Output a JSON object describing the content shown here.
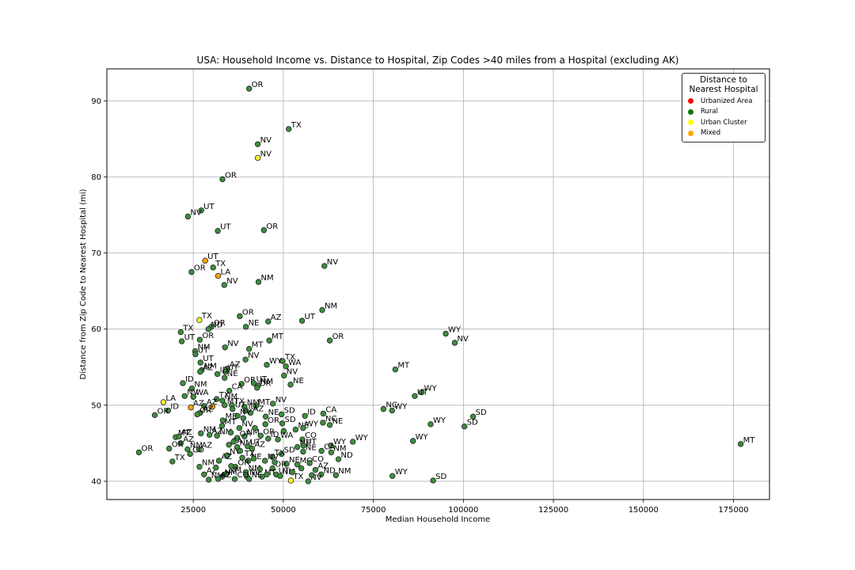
{
  "chart_data": {
    "type": "scatter",
    "title": "USA: Household Income vs. Distance to Hospital, Zip Codes >40 miles from a Hospital (excluding AK)",
    "xlabel": "Median Household Income",
    "ylabel": "Distance from Zip Code to Nearest Hospital (mi)",
    "xlim": [
      1000,
      185000
    ],
    "ylim": [
      37.6,
      94.2
    ],
    "xticks": [
      25000,
      50000,
      75000,
      100000,
      125000,
      150000,
      175000
    ],
    "yticks": [
      40,
      50,
      60,
      70,
      80,
      90
    ],
    "grid": true,
    "legend": {
      "title": "Distance to Nearest Hospital",
      "placement": "upper right",
      "entries": [
        {
          "label": "Urbanized Area",
          "color": "#ff0000"
        },
        {
          "label": "Rural",
          "color": "#0a7a0a"
        },
        {
          "label": "Urban Cluster",
          "color": "#ffff00"
        },
        {
          "label": "Mixed",
          "color": "#ffa500"
        }
      ]
    },
    "category_colors": {
      "Rural": "#3d8f3d",
      "Urban Cluster": "#ffff33",
      "Mixed": "#ffa500",
      "Urbanized Area": "#ff0000"
    },
    "points": [
      {
        "x": 40500,
        "y": 91.6,
        "label": "OR",
        "cat": "Rural"
      },
      {
        "x": 51500,
        "y": 86.3,
        "label": "TX",
        "cat": "Rural"
      },
      {
        "x": 42900,
        "y": 84.3,
        "label": "NV",
        "cat": "Rural"
      },
      {
        "x": 42900,
        "y": 82.5,
        "label": "NV",
        "cat": "Urban Cluster"
      },
      {
        "x": 33100,
        "y": 79.7,
        "label": "OR",
        "cat": "Rural"
      },
      {
        "x": 27200,
        "y": 75.6,
        "label": "UT",
        "cat": "Rural"
      },
      {
        "x": 23500,
        "y": 74.8,
        "label": "NV",
        "cat": "Rural"
      },
      {
        "x": 31800,
        "y": 72.9,
        "label": "UT",
        "cat": "Rural"
      },
      {
        "x": 44600,
        "y": 73.0,
        "label": "OR",
        "cat": "Rural"
      },
      {
        "x": 61400,
        "y": 68.3,
        "label": "NV",
        "cat": "Rural"
      },
      {
        "x": 28300,
        "y": 69.0,
        "label": "UT",
        "cat": "Mixed"
      },
      {
        "x": 30500,
        "y": 68.1,
        "label": "TX",
        "cat": "Rural"
      },
      {
        "x": 24500,
        "y": 67.5,
        "label": "OR",
        "cat": "Rural"
      },
      {
        "x": 31900,
        "y": 67.0,
        "label": "LA",
        "cat": "Mixed"
      },
      {
        "x": 33600,
        "y": 65.8,
        "label": "NV",
        "cat": "Rural"
      },
      {
        "x": 43100,
        "y": 66.2,
        "label": "NM",
        "cat": "Rural"
      },
      {
        "x": 60800,
        "y": 62.5,
        "label": "NM",
        "cat": "Rural"
      },
      {
        "x": 37900,
        "y": 61.7,
        "label": "OR",
        "cat": "Rural"
      },
      {
        "x": 26700,
        "y": 61.2,
        "label": "TX",
        "cat": "Urban Cluster"
      },
      {
        "x": 45800,
        "y": 61.0,
        "label": "AZ",
        "cat": "Rural"
      },
      {
        "x": 55200,
        "y": 61.1,
        "label": "UT",
        "cat": "Rural"
      },
      {
        "x": 39600,
        "y": 60.3,
        "label": "NE",
        "cat": "Rural"
      },
      {
        "x": 30000,
        "y": 60.3,
        "label": "OR",
        "cat": "Rural"
      },
      {
        "x": 29200,
        "y": 60.0,
        "label": "ND",
        "cat": "Rural"
      },
      {
        "x": 21500,
        "y": 59.6,
        "label": "TX",
        "cat": "Rural"
      },
      {
        "x": 95100,
        "y": 59.4,
        "label": "WY",
        "cat": "Rural"
      },
      {
        "x": 97600,
        "y": 58.2,
        "label": "NV",
        "cat": "Rural"
      },
      {
        "x": 62900,
        "y": 58.5,
        "label": "OR",
        "cat": "Rural"
      },
      {
        "x": 46100,
        "y": 58.5,
        "label": "MT",
        "cat": "Rural"
      },
      {
        "x": 26800,
        "y": 58.6,
        "label": "OR",
        "cat": "Rural"
      },
      {
        "x": 21800,
        "y": 58.4,
        "label": "UT",
        "cat": "Rural"
      },
      {
        "x": 33800,
        "y": 57.6,
        "label": "NV",
        "cat": "Rural"
      },
      {
        "x": 40500,
        "y": 57.4,
        "label": "MT",
        "cat": "Rural"
      },
      {
        "x": 25500,
        "y": 57.1,
        "label": "NM",
        "cat": "Rural"
      },
      {
        "x": 25600,
        "y": 56.7,
        "label": "UT",
        "cat": "Rural"
      },
      {
        "x": 39500,
        "y": 56.0,
        "label": "NV",
        "cat": "Rural"
      },
      {
        "x": 27000,
        "y": 55.6,
        "label": "UT",
        "cat": "Rural"
      },
      {
        "x": 49800,
        "y": 55.8,
        "label": "TX",
        "cat": "Rural"
      },
      {
        "x": 45400,
        "y": 55.3,
        "label": "WY",
        "cat": "Rural"
      },
      {
        "x": 50700,
        "y": 55.1,
        "label": "WA",
        "cat": "Rural"
      },
      {
        "x": 81100,
        "y": 54.7,
        "label": "MT",
        "cat": "Rural"
      },
      {
        "x": 27300,
        "y": 54.6,
        "label": "NM",
        "cat": "Rural"
      },
      {
        "x": 26900,
        "y": 54.4,
        "label": "AZ",
        "cat": "Rural"
      },
      {
        "x": 34400,
        "y": 54.8,
        "label": "AZ",
        "cat": "Rural"
      },
      {
        "x": 33900,
        "y": 54.4,
        "label": "UT",
        "cat": "Rural"
      },
      {
        "x": 31700,
        "y": 54.1,
        "label": "ID",
        "cat": "Rural"
      },
      {
        "x": 50200,
        "y": 53.9,
        "label": "NV",
        "cat": "Rural"
      },
      {
        "x": 33700,
        "y": 53.6,
        "label": "NE",
        "cat": "Rural"
      },
      {
        "x": 22100,
        "y": 52.9,
        "label": "ID",
        "cat": "Rural"
      },
      {
        "x": 38400,
        "y": 52.8,
        "label": "OR",
        "cat": "Rural"
      },
      {
        "x": 41800,
        "y": 52.9,
        "label": "UT",
        "cat": "Rural"
      },
      {
        "x": 43000,
        "y": 52.6,
        "label": "NM",
        "cat": "Rural"
      },
      {
        "x": 42700,
        "y": 52.3,
        "label": "OR",
        "cat": "Rural"
      },
      {
        "x": 52000,
        "y": 52.7,
        "label": "NE",
        "cat": "Rural"
      },
      {
        "x": 24600,
        "y": 52.2,
        "label": "NM",
        "cat": "Rural"
      },
      {
        "x": 35000,
        "y": 51.9,
        "label": "CA",
        "cat": "Rural"
      },
      {
        "x": 88400,
        "y": 51.7,
        "label": "WY",
        "cat": "Rural"
      },
      {
        "x": 86500,
        "y": 51.2,
        "label": "UT",
        "cat": "Rural"
      },
      {
        "x": 22600,
        "y": 51.2,
        "label": "NV",
        "cat": "Rural"
      },
      {
        "x": 25000,
        "y": 51.1,
        "label": "WA",
        "cat": "Rural"
      },
      {
        "x": 31500,
        "y": 50.8,
        "label": "TX",
        "cat": "Rural"
      },
      {
        "x": 33100,
        "y": 50.6,
        "label": "NM",
        "cat": "Rural"
      },
      {
        "x": 16700,
        "y": 50.4,
        "label": "LA",
        "cat": "Urban Cluster"
      },
      {
        "x": 28000,
        "y": 49.9,
        "label": "AZ",
        "cat": "Rural"
      },
      {
        "x": 33700,
        "y": 50.0,
        "label": "MT",
        "cat": "Rural"
      },
      {
        "x": 35700,
        "y": 50.0,
        "label": "TX",
        "cat": "Rural"
      },
      {
        "x": 30300,
        "y": 49.8,
        "label": "",
        "cat": "Mixed"
      },
      {
        "x": 47100,
        "y": 50.2,
        "label": "NV",
        "cat": "Rural"
      },
      {
        "x": 39200,
        "y": 49.8,
        "label": "NM",
        "cat": "Rural"
      },
      {
        "x": 42400,
        "y": 49.9,
        "label": "MT",
        "cat": "Rural"
      },
      {
        "x": 24300,
        "y": 49.7,
        "label": "AZ",
        "cat": "Mixed"
      },
      {
        "x": 18000,
        "y": 49.3,
        "label": "ID",
        "cat": "Rural"
      },
      {
        "x": 35900,
        "y": 49.5,
        "label": "UT",
        "cat": "Rural"
      },
      {
        "x": 39600,
        "y": 49.3,
        "label": "ID",
        "cat": "Rural"
      },
      {
        "x": 40900,
        "y": 49.0,
        "label": "AZ",
        "cat": "Rural"
      },
      {
        "x": 26900,
        "y": 49.0,
        "label": "AZ",
        "cat": "Rural"
      },
      {
        "x": 26100,
        "y": 48.8,
        "label": "OR",
        "cat": "Rural"
      },
      {
        "x": 14300,
        "y": 48.7,
        "label": "OR",
        "cat": "Rural"
      },
      {
        "x": 77800,
        "y": 49.5,
        "label": "NC",
        "cat": "Rural"
      },
      {
        "x": 80200,
        "y": 49.3,
        "label": "WY",
        "cat": "Rural"
      },
      {
        "x": 102700,
        "y": 48.5,
        "label": "SD",
        "cat": "Rural"
      },
      {
        "x": 49500,
        "y": 48.8,
        "label": "SD",
        "cat": "Rural"
      },
      {
        "x": 45100,
        "y": 48.5,
        "label": "NE",
        "cat": "Rural"
      },
      {
        "x": 37300,
        "y": 48.6,
        "label": "NV",
        "cat": "Rural"
      },
      {
        "x": 56000,
        "y": 48.6,
        "label": "ID",
        "cat": "Rural"
      },
      {
        "x": 61100,
        "y": 48.9,
        "label": "CA",
        "cat": "Rural"
      },
      {
        "x": 33200,
        "y": 48.0,
        "label": "ME",
        "cat": "Rural"
      },
      {
        "x": 90900,
        "y": 47.5,
        "label": "WY",
        "cat": "Rural"
      },
      {
        "x": 100300,
        "y": 47.2,
        "label": "SD",
        "cat": "Rural"
      },
      {
        "x": 61000,
        "y": 47.7,
        "label": "NC",
        "cat": "Rural"
      },
      {
        "x": 62900,
        "y": 47.4,
        "label": "NE",
        "cat": "Rural"
      },
      {
        "x": 49700,
        "y": 47.6,
        "label": "SD",
        "cat": "Rural"
      },
      {
        "x": 45000,
        "y": 47.5,
        "label": "OR",
        "cat": "Rural"
      },
      {
        "x": 33000,
        "y": 47.3,
        "label": "MT",
        "cat": "Rural"
      },
      {
        "x": 37800,
        "y": 47.0,
        "label": "NV",
        "cat": "Rural"
      },
      {
        "x": 53400,
        "y": 46.8,
        "label": "NE",
        "cat": "Rural"
      },
      {
        "x": 55500,
        "y": 47.0,
        "label": "WY",
        "cat": "Rural"
      },
      {
        "x": 50100,
        "y": 46.6,
        "label": "",
        "cat": "Rural"
      },
      {
        "x": 27100,
        "y": 46.3,
        "label": "NM",
        "cat": "Rural"
      },
      {
        "x": 29500,
        "y": 46.1,
        "label": "AZ",
        "cat": "Rural"
      },
      {
        "x": 31600,
        "y": 46.0,
        "label": "NM",
        "cat": "Rural"
      },
      {
        "x": 43700,
        "y": 46.0,
        "label": "OR",
        "cat": "Rural"
      },
      {
        "x": 39200,
        "y": 45.9,
        "label": "NM",
        "cat": "Rural"
      },
      {
        "x": 20100,
        "y": 45.8,
        "label": "MT",
        "cat": "Rural"
      },
      {
        "x": 21000,
        "y": 45.9,
        "label": "AZ",
        "cat": "Rural"
      },
      {
        "x": 37200,
        "y": 45.7,
        "label": "OR",
        "cat": "Rural"
      },
      {
        "x": 45800,
        "y": 45.6,
        "label": "ID",
        "cat": "Rural"
      },
      {
        "x": 48500,
        "y": 45.5,
        "label": "WA",
        "cat": "Rural"
      },
      {
        "x": 55300,
        "y": 45.5,
        "label": "CO",
        "cat": "Rural"
      },
      {
        "x": 86000,
        "y": 45.3,
        "label": "WY",
        "cat": "Rural"
      },
      {
        "x": 69300,
        "y": 45.2,
        "label": "WY",
        "cat": "Rural"
      },
      {
        "x": 177000,
        "y": 44.9,
        "label": "MT",
        "cat": "Rural"
      },
      {
        "x": 21500,
        "y": 45.0,
        "label": "AZ",
        "cat": "Rural"
      },
      {
        "x": 34900,
        "y": 44.8,
        "label": "CA",
        "cat": "Rural"
      },
      {
        "x": 37200,
        "y": 44.5,
        "label": "NM",
        "cat": "Rural"
      },
      {
        "x": 40100,
        "y": 44.6,
        "label": "UT",
        "cat": "Rural"
      },
      {
        "x": 41300,
        "y": 44.3,
        "label": "AZ",
        "cat": "Rural"
      },
      {
        "x": 53900,
        "y": 44.5,
        "label": "NE",
        "cat": "Rural"
      },
      {
        "x": 55600,
        "y": 44.7,
        "label": "UT",
        "cat": "Rural"
      },
      {
        "x": 63200,
        "y": 44.7,
        "label": "WY",
        "cat": "Rural"
      },
      {
        "x": 18300,
        "y": 44.3,
        "label": "OR",
        "cat": "Rural"
      },
      {
        "x": 23400,
        "y": 44.2,
        "label": "NM",
        "cat": "Rural"
      },
      {
        "x": 26600,
        "y": 44.2,
        "label": "AZ",
        "cat": "Rural"
      },
      {
        "x": 60600,
        "y": 44.0,
        "label": "CA",
        "cat": "Rural"
      },
      {
        "x": 55500,
        "y": 43.9,
        "label": "NE",
        "cat": "Rural"
      },
      {
        "x": 63300,
        "y": 43.8,
        "label": "NM",
        "cat": "Rural"
      },
      {
        "x": 9900,
        "y": 43.8,
        "label": "OR",
        "cat": "Rural"
      },
      {
        "x": 24100,
        "y": 43.6,
        "label": "CO",
        "cat": "Rural"
      },
      {
        "x": 49500,
        "y": 43.6,
        "label": "SD",
        "cat": "Rural"
      },
      {
        "x": 34400,
        "y": 43.4,
        "label": "NV",
        "cat": "Rural"
      },
      {
        "x": 38600,
        "y": 43.1,
        "label": "TX",
        "cat": "Rural"
      },
      {
        "x": 65300,
        "y": 42.9,
        "label": "ND",
        "cat": "Rural"
      },
      {
        "x": 46900,
        "y": 43.2,
        "label": "TX",
        "cat": "Rural"
      },
      {
        "x": 19200,
        "y": 42.6,
        "label": "TX",
        "cat": "Rural"
      },
      {
        "x": 32100,
        "y": 42.7,
        "label": "AZ",
        "cat": "Rural"
      },
      {
        "x": 40300,
        "y": 42.7,
        "label": "NE",
        "cat": "Rural"
      },
      {
        "x": 44900,
        "y": 42.7,
        "label": "NV",
        "cat": "Rural"
      },
      {
        "x": 50900,
        "y": 42.3,
        "label": "NE",
        "cat": "Rural"
      },
      {
        "x": 53900,
        "y": 42.2,
        "label": "MO",
        "cat": "Rural"
      },
      {
        "x": 57300,
        "y": 42.4,
        "label": "CO",
        "cat": "Rural"
      },
      {
        "x": 26700,
        "y": 41.9,
        "label": "NM",
        "cat": "Rural"
      },
      {
        "x": 36700,
        "y": 41.9,
        "label": "OR",
        "cat": "Rural"
      },
      {
        "x": 47000,
        "y": 41.7,
        "label": "OR",
        "cat": "Rural"
      },
      {
        "x": 55000,
        "y": 41.7,
        "label": "",
        "cat": "Rural"
      },
      {
        "x": 58900,
        "y": 41.5,
        "label": "AZ",
        "cat": "Rural"
      },
      {
        "x": 28000,
        "y": 40.9,
        "label": "AZ",
        "cat": "Rural"
      },
      {
        "x": 34200,
        "y": 41.0,
        "label": "NM",
        "cat": "Rural"
      },
      {
        "x": 39600,
        "y": 41.2,
        "label": "NM",
        "cat": "Rural"
      },
      {
        "x": 48000,
        "y": 40.9,
        "label": "UT",
        "cat": "Rural"
      },
      {
        "x": 60500,
        "y": 40.9,
        "label": "ND",
        "cat": "Rural"
      },
      {
        "x": 64600,
        "y": 40.8,
        "label": "NM",
        "cat": "Rural"
      },
      {
        "x": 80300,
        "y": 40.7,
        "label": "WY",
        "cat": "Rural"
      },
      {
        "x": 33000,
        "y": 40.6,
        "label": "NM",
        "cat": "Rural"
      },
      {
        "x": 39900,
        "y": 40.6,
        "label": "NV",
        "cat": "Rural"
      },
      {
        "x": 44100,
        "y": 40.6,
        "label": "MT",
        "cat": "Rural"
      },
      {
        "x": 49100,
        "y": 40.7,
        "label": "NM",
        "cat": "Rural"
      },
      {
        "x": 29300,
        "y": 40.2,
        "label": "NM",
        "cat": "Rural"
      },
      {
        "x": 31900,
        "y": 40.3,
        "label": "AZ",
        "cat": "Rural"
      },
      {
        "x": 36500,
        "y": 40.3,
        "label": "CO",
        "cat": "Rural"
      },
      {
        "x": 40500,
        "y": 40.3,
        "label": "NE",
        "cat": "Rural"
      },
      {
        "x": 52100,
        "y": 40.1,
        "label": "TX",
        "cat": "Urban Cluster"
      },
      {
        "x": 56900,
        "y": 40.0,
        "label": "NV",
        "cat": "Rural"
      },
      {
        "x": 91600,
        "y": 40.1,
        "label": "SD",
        "cat": "Rural"
      },
      {
        "x": 31300,
        "y": 41.8,
        "label": "",
        "cat": "Rural"
      },
      {
        "x": 35500,
        "y": 42.0,
        "label": "",
        "cat": "Rural"
      },
      {
        "x": 38000,
        "y": 44.0,
        "label": "",
        "cat": "Rural"
      },
      {
        "x": 41800,
        "y": 43.0,
        "label": "",
        "cat": "Rural"
      },
      {
        "x": 43500,
        "y": 41.6,
        "label": "",
        "cat": "Rural"
      },
      {
        "x": 45400,
        "y": 40.9,
        "label": "",
        "cat": "Rural"
      },
      {
        "x": 47600,
        "y": 42.5,
        "label": "",
        "cat": "Rural"
      },
      {
        "x": 52500,
        "y": 41.2,
        "label": "",
        "cat": "Rural"
      },
      {
        "x": 57900,
        "y": 40.8,
        "label": "",
        "cat": "Rural"
      },
      {
        "x": 36200,
        "y": 45.2,
        "label": "",
        "cat": "Rural"
      },
      {
        "x": 42100,
        "y": 47.0,
        "label": "",
        "cat": "Rural"
      },
      {
        "x": 38900,
        "y": 48.3,
        "label": "",
        "cat": "Rural"
      },
      {
        "x": 35400,
        "y": 46.4,
        "label": "",
        "cat": "Rural"
      }
    ]
  }
}
